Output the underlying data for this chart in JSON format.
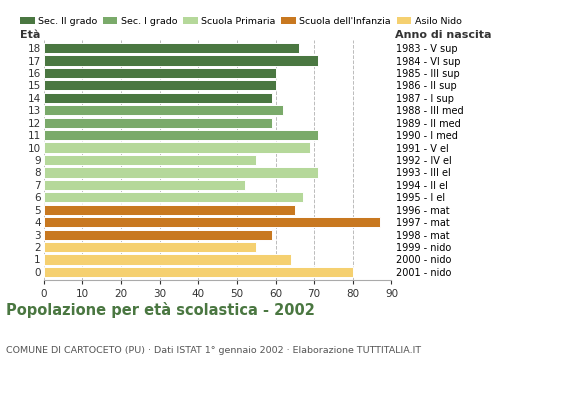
{
  "ages": [
    18,
    17,
    16,
    15,
    14,
    13,
    12,
    11,
    10,
    9,
    8,
    7,
    6,
    5,
    4,
    3,
    2,
    1,
    0
  ],
  "values": [
    66,
    71,
    60,
    60,
    59,
    62,
    59,
    71,
    69,
    55,
    71,
    52,
    67,
    65,
    87,
    59,
    55,
    64,
    80
  ],
  "right_labels": [
    "1983 - V sup",
    "1984 - VI sup",
    "1985 - III sup",
    "1986 - II sup",
    "1987 - I sup",
    "1988 - III med",
    "1989 - II med",
    "1990 - I med",
    "1991 - V el",
    "1992 - IV el",
    "1993 - III el",
    "1994 - II el",
    "1995 - I el",
    "1996 - mat",
    "1997 - mat",
    "1998 - mat",
    "1999 - nido",
    "2000 - nido",
    "2001 - nido"
  ],
  "color_map": {
    "18": "#4a7741",
    "17": "#4a7741",
    "16": "#4a7741",
    "15": "#4a7741",
    "14": "#4a7741",
    "13": "#7aaa6a",
    "12": "#7aaa6a",
    "11": "#7aaa6a",
    "10": "#b5d89a",
    "9": "#b5d89a",
    "8": "#b5d89a",
    "7": "#b5d89a",
    "6": "#b5d89a",
    "5": "#c87820",
    "4": "#c87820",
    "3": "#c87820",
    "2": "#f5d070",
    "1": "#f5d070",
    "0": "#f5d070"
  },
  "legend_colors": [
    "#4a7741",
    "#7aaa6a",
    "#b5d89a",
    "#c87820",
    "#f5d070"
  ],
  "legend_labels": [
    "Sec. II grado",
    "Sec. I grado",
    "Scuola Primaria",
    "Scuola dell'Infanzia",
    "Asilo Nido"
  ],
  "xlabel_left": "Età",
  "xlabel_right": "Anno di nascita",
  "title": "Popolazione per età scolastica - 2002",
  "subtitle": "COMUNE DI CARTOCETO (PU) · Dati ISTAT 1° gennaio 2002 · Elaborazione TUTTITALIA.IT",
  "xlim": [
    0,
    90
  ],
  "xticks": [
    0,
    10,
    20,
    30,
    40,
    50,
    60,
    70,
    80,
    90
  ],
  "bg_color": "#ffffff",
  "grid_color": "#bbbbbb",
  "title_color": "#4a7741",
  "subtitle_color": "#555555"
}
